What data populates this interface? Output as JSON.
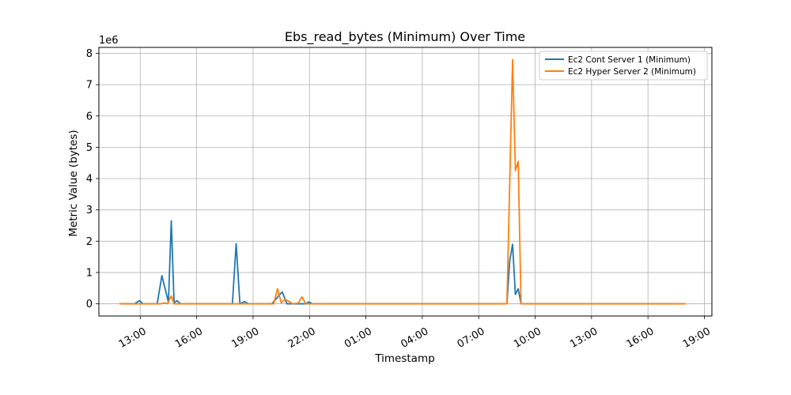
{
  "chart_data": {
    "type": "line",
    "title": "Ebs_read_bytes (Minimum) Over Time",
    "xlabel": "Timestamp",
    "ylabel": "Metric Value (bytes)",
    "y_multiplier_label": "1e6",
    "y_scale": 1000000,
    "ylim": [
      -0.39,
      8.19
    ],
    "yticks": [
      0,
      1,
      2,
      3,
      4,
      5,
      6,
      7,
      8
    ],
    "xlim_hours": [
      10.8,
      43.4
    ],
    "xticks": [
      {
        "hour": 13,
        "label": "13:00"
      },
      {
        "hour": 16,
        "label": "16:00"
      },
      {
        "hour": 19,
        "label": "19:00"
      },
      {
        "hour": 22,
        "label": "22:00"
      },
      {
        "hour": 25,
        "label": "01:00"
      },
      {
        "hour": 28,
        "label": "04:00"
      },
      {
        "hour": 31,
        "label": "07:00"
      },
      {
        "hour": 34,
        "label": "10:00"
      },
      {
        "hour": 37,
        "label": "13:00"
      },
      {
        "hour": 40,
        "label": "16:00"
      },
      {
        "hour": 43,
        "label": "19:00"
      }
    ],
    "grid": true,
    "legend_position": "top-right",
    "series": [
      {
        "name": "Ec2 Cont Server 1 (Minimum)",
        "color": "#1f77b4",
        "points": [
          [
            11.9,
            0
          ],
          [
            12.7,
            0
          ],
          [
            12.95,
            0.1
          ],
          [
            13.15,
            0
          ],
          [
            13.9,
            0
          ],
          [
            14.15,
            0.9
          ],
          [
            14.5,
            0.05
          ],
          [
            14.65,
            2.65
          ],
          [
            14.8,
            0.03
          ],
          [
            14.95,
            0.1
          ],
          [
            15.15,
            0
          ],
          [
            17.9,
            0
          ],
          [
            18.1,
            1.92
          ],
          [
            18.3,
            0
          ],
          [
            18.55,
            0.07
          ],
          [
            18.75,
            0
          ],
          [
            20.0,
            0
          ],
          [
            20.4,
            0.28
          ],
          [
            20.55,
            0.38
          ],
          [
            20.8,
            0
          ],
          [
            21.8,
            0
          ],
          [
            21.97,
            0.06
          ],
          [
            22.15,
            0
          ],
          [
            32.5,
            0
          ],
          [
            32.65,
            1.38
          ],
          [
            32.8,
            1.9
          ],
          [
            32.95,
            0.3
          ],
          [
            33.1,
            0.48
          ],
          [
            33.25,
            0
          ],
          [
            42.0,
            0
          ]
        ]
      },
      {
        "name": "Ec2 Hyper Server 2 (Minimum)",
        "color": "#ff7f0e",
        "points": [
          [
            11.9,
            0
          ],
          [
            14.1,
            0
          ],
          [
            14.3,
            0.03
          ],
          [
            14.45,
            0
          ],
          [
            14.65,
            0.25
          ],
          [
            14.8,
            0
          ],
          [
            20.1,
            0
          ],
          [
            20.3,
            0.48
          ],
          [
            20.5,
            0.03
          ],
          [
            20.7,
            0.15
          ],
          [
            21.1,
            0
          ],
          [
            21.4,
            0.02
          ],
          [
            21.6,
            0.22
          ],
          [
            21.8,
            0
          ],
          [
            32.5,
            0
          ],
          [
            32.8,
            7.8
          ],
          [
            32.95,
            4.25
          ],
          [
            33.1,
            4.55
          ],
          [
            33.25,
            0
          ],
          [
            42.0,
            0
          ]
        ]
      }
    ]
  }
}
